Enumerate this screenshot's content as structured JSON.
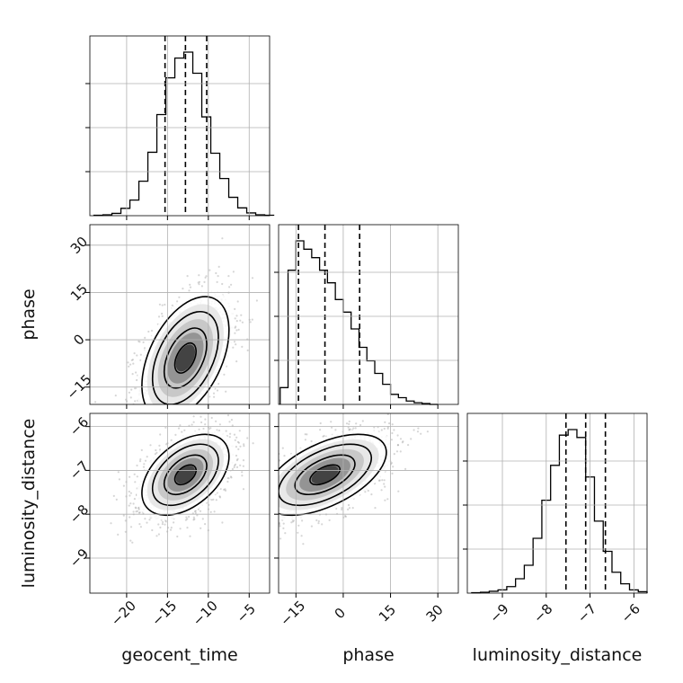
{
  "chart_data": {
    "type": "corner",
    "parameters": [
      "geocent_time",
      "phase",
      "luminosity_distance"
    ],
    "axis_labels": {
      "x": [
        "geocent_time",
        "phase",
        "luminosity_distance"
      ],
      "y": [
        "",
        "phase",
        "luminosity_distance"
      ]
    },
    "ranges": {
      "geocent_time": [
        -24.5,
        -2.5
      ],
      "phase": [
        -20.5,
        36.5
      ],
      "luminosity_distance": [
        -9.8,
        -5.7
      ]
    },
    "ticks": {
      "geocent_time": [
        -20,
        -15,
        -10,
        -5
      ],
      "phase": [
        -15,
        0,
        15,
        30
      ],
      "luminosity_distance": [
        -9,
        -8,
        -7,
        -6
      ]
    },
    "tick_labels": {
      "geocent_time": [
        "−20",
        "−15",
        "−10",
        "−5"
      ],
      "phase": [
        "−15",
        "0",
        "15",
        "30"
      ],
      "luminosity_distance": [
        "−9",
        "−8",
        "−7",
        "−6"
      ]
    },
    "quantiles": {
      "geocent_time": [
        -15.3,
        -12.8,
        -10.2
      ],
      "phase": [
        -14.2,
        -5.8,
        5.2
      ],
      "luminosity_distance": [
        -7.55,
        -7.1,
        -6.65
      ]
    },
    "histograms": {
      "geocent_time": {
        "bin_edges": [
          -24.0,
          -22.9,
          -21.8,
          -20.7,
          -19.6,
          -18.5,
          -17.4,
          -16.3,
          -15.2,
          -14.1,
          -13.0,
          -11.9,
          -10.8,
          -9.7,
          -8.6,
          -7.5,
          -6.4,
          -5.3,
          -4.2,
          -3.1,
          -2.0
        ],
        "counts": [
          1,
          2,
          5,
          16,
          34,
          75,
          138,
          220,
          300,
          343,
          356,
          310,
          215,
          136,
          81,
          40,
          17,
          6,
          2,
          1
        ]
      },
      "phase": {
        "bin_edges": [
          -20.0,
          -17.5,
          -15.0,
          -12.5,
          -10.0,
          -7.5,
          -5.0,
          -2.5,
          0.0,
          2.5,
          5.0,
          7.5,
          10.0,
          12.5,
          15.0,
          17.5,
          20.0,
          22.5,
          25.0,
          27.5,
          30.0
        ],
        "counts": [
          20,
          160,
          195,
          185,
          175,
          160,
          145,
          125,
          110,
          90,
          68,
          52,
          37,
          24,
          12,
          8,
          4,
          2,
          1,
          0
        ]
      },
      "luminosity_distance": {
        "bin_edges": [
          -9.7,
          -9.5,
          -9.3,
          -9.1,
          -8.9,
          -8.7,
          -8.5,
          -8.3,
          -8.1,
          -7.9,
          -7.7,
          -7.5,
          -7.3,
          -7.1,
          -6.9,
          -6.7,
          -6.5,
          -6.3,
          -6.1,
          -5.9,
          -5.7
        ],
        "counts": [
          1,
          2,
          4,
          7,
          14,
          31,
          60,
          118,
          200,
          275,
          340,
          352,
          335,
          250,
          155,
          90,
          45,
          20,
          7,
          3
        ]
      }
    },
    "correlations": {
      "geocent_time|phase": {
        "mean": [
          -12.8,
          -5.8
        ],
        "sd": [
          2.6,
          9.5
        ],
        "rho": 0.45
      },
      "geocent_time|luminosity_distance": {
        "mean": [
          -12.8,
          -7.1
        ],
        "sd": [
          2.6,
          0.45
        ],
        "rho": 0.45
      },
      "phase|luminosity_distance": {
        "mean": [
          -5.8,
          -7.1
        ],
        "sd": [
          9.5,
          0.45
        ],
        "rho": 0.55
      }
    },
    "grid": true
  }
}
